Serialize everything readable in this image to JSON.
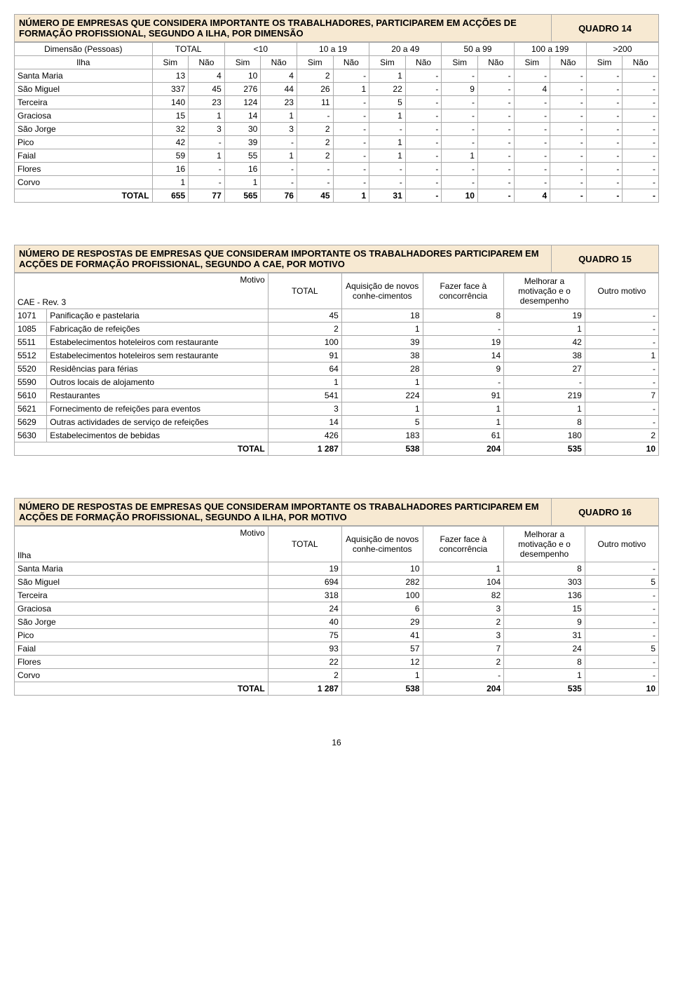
{
  "page_number": "16",
  "t14": {
    "title": "NÚMERO DE EMPRESAS QUE CONSIDERA IMPORTANTE OS TRABALHADORES, PARTICIPAREM EM ACÇÕES DE FORMAÇÃO PROFISSIONAL, SEGUNDO A ILHA, POR DIMENSÃO",
    "quadro": "QUADRO 14",
    "dim_label": "Dimensão (Pessoas)",
    "row_label": "Ilha",
    "total_label": "TOTAL",
    "groups": [
      "TOTAL",
      "<10",
      "10 a 19",
      "20 a 49",
      "50 a 99",
      "100 a 199",
      ">200"
    ],
    "sub": [
      "Sim",
      "Não"
    ],
    "rows": [
      {
        "l": "Santa Maria",
        "v": [
          "13",
          "4",
          "10",
          "4",
          "2",
          "-",
          "1",
          "-",
          "-",
          "-",
          "-",
          "-",
          "-",
          "-"
        ]
      },
      {
        "l": "São Miguel",
        "v": [
          "337",
          "45",
          "276",
          "44",
          "26",
          "1",
          "22",
          "-",
          "9",
          "-",
          "4",
          "-",
          "-",
          "-"
        ]
      },
      {
        "l": "Terceira",
        "v": [
          "140",
          "23",
          "124",
          "23",
          "11",
          "-",
          "5",
          "-",
          "-",
          "-",
          "-",
          "-",
          "-",
          "-"
        ]
      },
      {
        "l": "Graciosa",
        "v": [
          "15",
          "1",
          "14",
          "1",
          "-",
          "-",
          "1",
          "-",
          "-",
          "-",
          "-",
          "-",
          "-",
          "-"
        ]
      },
      {
        "l": "São Jorge",
        "v": [
          "32",
          "3",
          "30",
          "3",
          "2",
          "-",
          "-",
          "-",
          "-",
          "-",
          "-",
          "-",
          "-",
          "-"
        ]
      },
      {
        "l": "Pico",
        "v": [
          "42",
          "-",
          "39",
          "-",
          "2",
          "-",
          "1",
          "-",
          "-",
          "-",
          "-",
          "-",
          "-",
          "-"
        ]
      },
      {
        "l": "Faial",
        "v": [
          "59",
          "1",
          "55",
          "1",
          "2",
          "-",
          "1",
          "-",
          "1",
          "-",
          "-",
          "-",
          "-",
          "-"
        ]
      },
      {
        "l": "Flores",
        "v": [
          "16",
          "-",
          "16",
          "-",
          "-",
          "-",
          "-",
          "-",
          "-",
          "-",
          "-",
          "-",
          "-",
          "-"
        ]
      },
      {
        "l": "Corvo",
        "v": [
          "1",
          "-",
          "1",
          "-",
          "-",
          "-",
          "-",
          "-",
          "-",
          "-",
          "-",
          "-",
          "-",
          "-"
        ]
      }
    ],
    "total": {
      "l": "TOTAL",
      "v": [
        "655",
        "77",
        "565",
        "76",
        "45",
        "1",
        "31",
        "-",
        "10",
        "-",
        "4",
        "-",
        "-",
        "-"
      ]
    }
  },
  "t15": {
    "title": "NÚMERO DE RESPOSTAS DE EMPRESAS QUE CONSIDERAM IMPORTANTE OS TRABALHADORES PARTICIPAREM EM ACÇÕES DE FORMAÇÃO PROFISSIONAL, SEGUNDO A CAE, POR MOTIVO",
    "quadro": "QUADRO 15",
    "motivo_label": "Motivo",
    "row_label": "CAE - Rev. 3",
    "cols": [
      "TOTAL",
      "Aquisição de novos conhe-cimentos",
      "Fazer face à concorrência",
      "Melhorar a motivação e o desempenho",
      "Outro motivo"
    ],
    "rows": [
      {
        "c": "1071",
        "l": "Panificação e pastelaria",
        "v": [
          "45",
          "18",
          "8",
          "19",
          "-"
        ]
      },
      {
        "c": "1085",
        "l": "Fabricação de refeições",
        "v": [
          "2",
          "1",
          "-",
          "1",
          "-"
        ]
      },
      {
        "c": "5511",
        "l": "Estabelecimentos hoteleiros com restaurante",
        "v": [
          "100",
          "39",
          "19",
          "42",
          "-"
        ]
      },
      {
        "c": "5512",
        "l": "Estabelecimentos hoteleiros sem restaurante",
        "v": [
          "91",
          "38",
          "14",
          "38",
          "1"
        ]
      },
      {
        "c": "5520",
        "l": "Residências para férias",
        "v": [
          "64",
          "28",
          "9",
          "27",
          "-"
        ]
      },
      {
        "c": "5590",
        "l": "Outros locais de alojamento",
        "v": [
          "1",
          "1",
          "-",
          "-",
          "-"
        ]
      },
      {
        "c": "5610",
        "l": "Restaurantes",
        "v": [
          "541",
          "224",
          "91",
          "219",
          "7"
        ]
      },
      {
        "c": "5621",
        "l": "Fornecimento de refeições para eventos",
        "v": [
          "3",
          "1",
          "1",
          "1",
          "-"
        ]
      },
      {
        "c": "5629",
        "l": "Outras actividades de serviço de refeições",
        "v": [
          "14",
          "5",
          "1",
          "8",
          "-"
        ]
      },
      {
        "c": "5630",
        "l": "Estabelecimentos de bebidas",
        "v": [
          "426",
          "183",
          "61",
          "180",
          "2"
        ]
      }
    ],
    "total": {
      "l": "TOTAL",
      "v": [
        "1 287",
        "538",
        "204",
        "535",
        "10"
      ]
    }
  },
  "t16": {
    "title": "NÚMERO DE RESPOSTAS DE EMPRESAS QUE CONSIDERAM IMPORTANTE OS TRABALHADORES PARTICIPAREM EM ACÇÕES DE FORMAÇÃO PROFISSIONAL, SEGUNDO A ILHA, POR MOTIVO",
    "quadro": "QUADRO 16",
    "motivo_label": "Motivo",
    "row_label": "Ilha",
    "cols": [
      "TOTAL",
      "Aquisição de novos conhe-cimentos",
      "Fazer face à concorrência",
      "Melhorar a motivação e o desempenho",
      "Outro motivo"
    ],
    "rows": [
      {
        "l": "Santa Maria",
        "v": [
          "19",
          "10",
          "1",
          "8",
          "-"
        ]
      },
      {
        "l": "São Miguel",
        "v": [
          "694",
          "282",
          "104",
          "303",
          "5"
        ]
      },
      {
        "l": "Terceira",
        "v": [
          "318",
          "100",
          "82",
          "136",
          "-"
        ]
      },
      {
        "l": "Graciosa",
        "v": [
          "24",
          "6",
          "3",
          "15",
          "-"
        ]
      },
      {
        "l": "São Jorge",
        "v": [
          "40",
          "29",
          "2",
          "9",
          "-"
        ]
      },
      {
        "l": "Pico",
        "v": [
          "75",
          "41",
          "3",
          "31",
          "-"
        ]
      },
      {
        "l": "Faial",
        "v": [
          "93",
          "57",
          "7",
          "24",
          "5"
        ]
      },
      {
        "l": "Flores",
        "v": [
          "22",
          "12",
          "2",
          "8",
          "-"
        ]
      },
      {
        "l": "Corvo",
        "v": [
          "2",
          "1",
          "-",
          "1",
          "-"
        ]
      }
    ],
    "total": {
      "l": "TOTAL",
      "v": [
        "1 287",
        "538",
        "204",
        "535",
        "10"
      ]
    }
  }
}
